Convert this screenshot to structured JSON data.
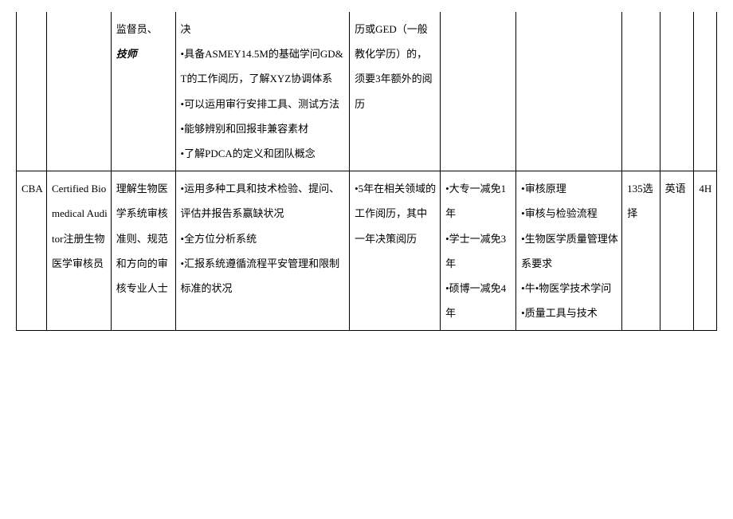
{
  "row1": {
    "col2": {
      "line1": "监督员、",
      "line2": "技师"
    },
    "col3": {
      "p1": "决",
      "p2": "•具备ASMEY14.5M的基础学问GD&T的工作阅历，了解XYZ协调体系",
      "p3": "•可以运用审行安排工具、测试方法",
      "p4": "•能够辨别和回报非兼容素材",
      "p5": "•了解PDCA的定义和团队概念"
    },
    "col4": "历或GED（一般教化学历）的，须要3年额外的阅历"
  },
  "row2": {
    "col0": "CBA",
    "col1": "Certified Biomedical Auditor注册生物医学审核员",
    "col2": "理解生物医学系统审核准则、规范和方向的审核专业人士",
    "col3": {
      "p1": "•运用多种工具和技术检验、提问、评估并报告系赢缺状况",
      "p2": "•全方位分析系统",
      "p3": "•汇报系统遵循流程平安管理和限制标准的状况"
    },
    "col4": "•5年在相关领域的工作阅历，其中一年决策阅历",
    "col5": {
      "p1": "•大专一减免1年",
      "p2": "•学士一减免3年",
      "p3": "•硕博一减免4年"
    },
    "col6": {
      "p1": "•审核原理",
      "p2": "•审核与检验流程",
      "p3": "•生物医学质量管理体系要求",
      "p4": "•牛•物医学技术学问",
      "p5": "•质量工具与技术"
    },
    "col7": "135选择",
    "col8": "英语",
    "col9": "4H"
  }
}
